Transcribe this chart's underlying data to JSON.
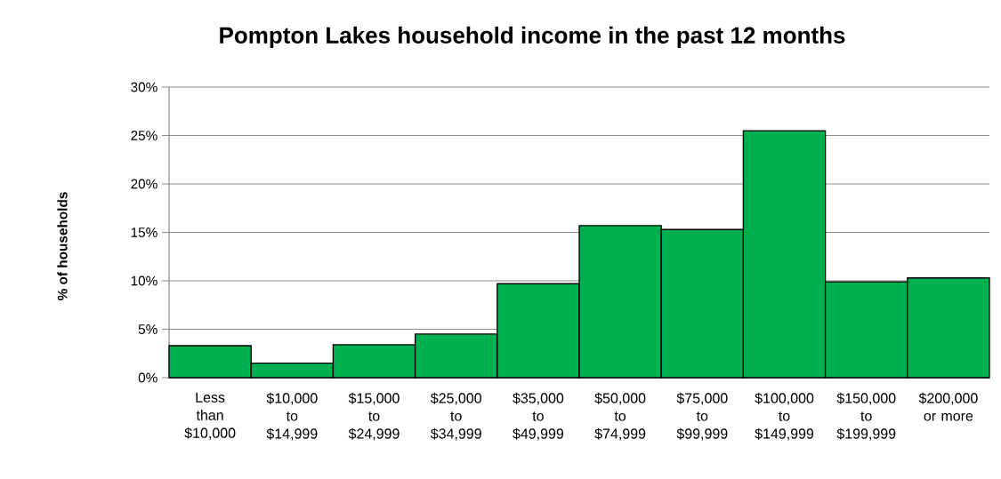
{
  "chart_data": {
    "type": "bar",
    "title": "Pompton Lakes household income in the past 12 months",
    "ylabel": "% of households",
    "categories": [
      "Less than $10,000",
      "$10,000 to $14,999",
      "$15,000 to $24,999",
      "$25,000 to $34,999",
      "$35,000 to $49,999",
      "$50,000 to $74,999",
      "$75,000 to $99,999",
      "$100,000 to $149,999",
      "$150,000 to $199,999",
      "$200,000 or more"
    ],
    "values": [
      3.3,
      1.5,
      3.4,
      4.5,
      9.7,
      15.7,
      15.3,
      25.5,
      9.9,
      10.3
    ],
    "color": "#00b050",
    "ylim": [
      0,
      30
    ],
    "yticks": [
      {
        "value": 0,
        "label": "0%"
      },
      {
        "value": 5,
        "label": "5%"
      },
      {
        "value": 10,
        "label": "10%"
      },
      {
        "value": 15,
        "label": "15%"
      },
      {
        "value": 20,
        "label": "20%"
      },
      {
        "value": 25,
        "label": "25%"
      },
      {
        "value": 30,
        "label": "30%"
      }
    ],
    "grid": "y"
  }
}
